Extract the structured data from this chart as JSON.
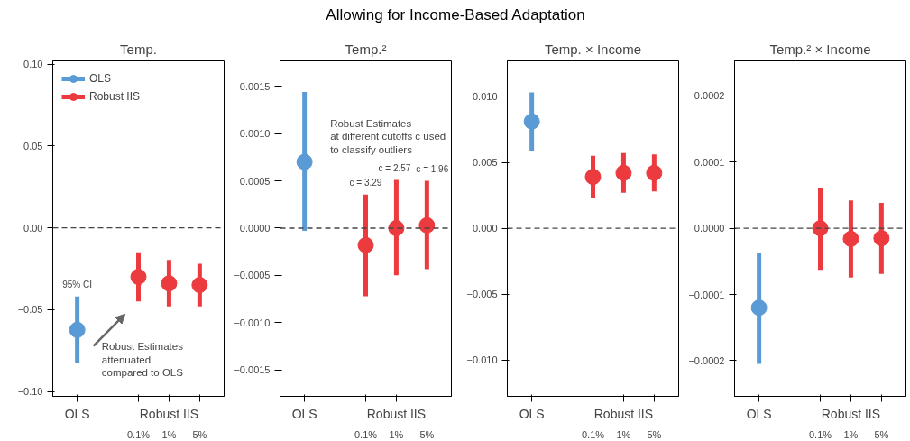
{
  "chart_data": [
    {
      "type": "other",
      "title": "Allowing for Income-Based Adaptation"
    },
    {
      "type": "scatter",
      "subtitle": "Temp.",
      "categories": [
        "OLS",
        null,
        "0.1%",
        "1%",
        "5%"
      ],
      "marker": "circle",
      "grid": false,
      "legend": "top left",
      "ylim": [
        -0.103,
        0.102
      ],
      "yticks": [
        {
          "value": -0.1,
          "label": "−0.10"
        },
        {
          "value": -0.05,
          "label": "−0.05"
        },
        {
          "value": 0,
          "label": "0.00"
        },
        {
          "value": 0.05,
          "label": "0.05"
        },
        {
          "value": 0.1,
          "label": "0.10"
        }
      ],
      "series": [
        {
          "name": "OLS",
          "color": "#5b9bd5",
          "values": [
            -0.0624,
            null,
            null,
            null,
            null
          ],
          "errors": [
            [
              -0.0827,
              -0.042
            ],
            null,
            null,
            null,
            null
          ]
        },
        {
          "name": "Robust IIS",
          "color": "#ec3b3f",
          "values": [
            null,
            null,
            -0.03,
            -0.034,
            -0.035
          ],
          "errors": [
            null,
            null,
            [
              -0.045,
              -0.015
            ],
            [
              -0.048,
              -0.0196
            ],
            [
              -0.048,
              -0.022
            ]
          ]
        }
      ],
      "ref_lines": [
        {
          "axis": "y",
          "value": 0,
          "line_style": "dashed"
        }
      ],
      "annotations": [
        "Robust IIS",
        {
          "text": "95% CI",
          "x": "OLS",
          "y": -0.042
        },
        "Robust Estimates\nattenuated\ncompared to OLS"
      ]
    },
    {
      "type": "scatter",
      "subtitle": "Temp.²",
      "categories": [
        "OLS",
        null,
        "0.1%",
        "1%",
        "5%"
      ],
      "marker": "circle",
      "grid": false,
      "ylim": [
        -0.00178,
        0.00177
      ],
      "yticks": [
        {
          "value": -0.0015,
          "label": "−0.0015"
        },
        {
          "value": -0.001,
          "label": "−0.0010"
        },
        {
          "value": -0.0005,
          "label": "−0.0005"
        },
        {
          "value": 0,
          "label": "0.0000"
        },
        {
          "value": 0.0005,
          "label": "0.0005"
        },
        {
          "value": 0.001,
          "label": "0.0010"
        },
        {
          "value": 0.0015,
          "label": "0.0015"
        }
      ],
      "series": [
        {
          "color": "#5b9bd5",
          "values": [
            0.0007,
            null,
            null,
            null,
            null
          ],
          "errors": [
            [
              -3e-05,
              0.00144
            ],
            null,
            null,
            null,
            null
          ]
        },
        {
          "color": "#ec3b3f",
          "values": [
            null,
            null,
            -0.00018,
            0.0,
            3e-05
          ],
          "errors": [
            null,
            null,
            [
              -0.00072,
              0.000355
            ],
            [
              -0.0005,
              0.00051
            ],
            [
              -0.000435,
              0.0005
            ]
          ]
        }
      ],
      "ref_lines": [
        {
          "axis": "y",
          "value": 0,
          "line_style": "dashed"
        }
      ],
      "annotations": [
        "Robust IIS",
        {
          "text": "c = 3.29",
          "x": "0.1%",
          "y": 0.000355
        },
        {
          "text": "c = 2.57",
          "x": "1%",
          "y": 0.00051
        },
        {
          "text": "c = 1.96",
          "x": "5%",
          "y": 0.0005
        },
        "Robust Estimates\nat different cutoffs c used\nto classify outliers"
      ]
    },
    {
      "type": "scatter",
      "subtitle": "Temp. × Income",
      "categories": [
        "OLS",
        null,
        "0.1%",
        "1%",
        "5%"
      ],
      "marker": "circle",
      "grid": false,
      "ylim": [
        -0.01275,
        0.0127
      ],
      "yticks": [
        {
          "value": -0.01,
          "label": "−0.010"
        },
        {
          "value": -0.005,
          "label": "−0.005"
        },
        {
          "value": 0,
          "label": "0.000"
        },
        {
          "value": 0.005,
          "label": "0.005"
        },
        {
          "value": 0.01,
          "label": "0.010"
        }
      ],
      "series": [
        {
          "color": "#5b9bd5",
          "values": [
            0.0081,
            null,
            null,
            null,
            null
          ],
          "errors": [
            [
              0.0059,
              0.0103
            ],
            null,
            null,
            null,
            null
          ]
        },
        {
          "color": "#ec3b3f",
          "values": [
            null,
            null,
            0.0039,
            0.0042,
            0.0042
          ],
          "errors": [
            null,
            null,
            [
              0.0023,
              0.0055
            ],
            [
              0.0027,
              0.0057
            ],
            [
              0.0028,
              0.0056
            ]
          ]
        }
      ],
      "ref_lines": [
        {
          "axis": "y",
          "value": 0,
          "line_style": "dashed"
        }
      ],
      "annotations": [
        "Robust IIS"
      ]
    },
    {
      "type": "scatter",
      "subtitle": "Temp.² × Income",
      "categories": [
        "OLS",
        null,
        "0.1%",
        "1%",
        "5%"
      ],
      "marker": "circle",
      "grid": false,
      "ylim": [
        -0.000254,
        0.000253
      ],
      "yticks": [
        {
          "value": -0.0002,
          "label": "−0.0002"
        },
        {
          "value": -0.0001,
          "label": "−0.0001"
        },
        {
          "value": 0,
          "label": "0.0000"
        },
        {
          "value": 0.0001,
          "label": "0.0001"
        },
        {
          "value": 0.0002,
          "label": "0.0002"
        }
      ],
      "series": [
        {
          "color": "#5b9bd5",
          "values": [
            -0.00012,
            null,
            null,
            null,
            null
          ],
          "errors": [
            [
              -0.000205,
              -3.65e-05
            ],
            null,
            null,
            null,
            null
          ]
        },
        {
          "color": "#ec3b3f",
          "values": [
            null,
            null,
            0.0,
            -1.6e-05,
            -1.5e-05
          ],
          "errors": [
            null,
            null,
            [
              -6.3e-05,
              6.1e-05
            ],
            [
              -7.44e-05,
              4.2e-05
            ],
            [
              -6.9e-05,
              3.84e-05
            ]
          ]
        }
      ],
      "ref_lines": [
        {
          "axis": "y",
          "value": 0,
          "line_style": "dashed"
        }
      ],
      "annotations": [
        "Robust IIS"
      ]
    }
  ]
}
